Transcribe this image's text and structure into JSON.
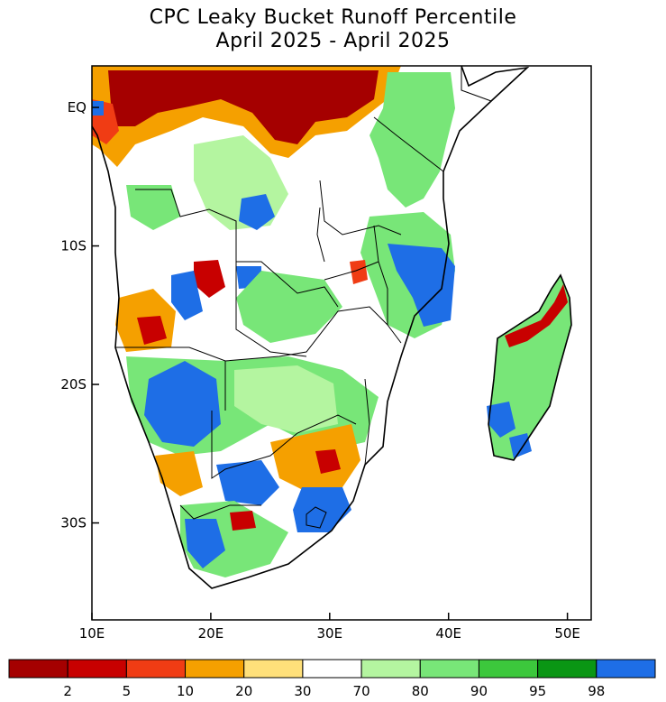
{
  "title_line1": "CPC Leaky Bucket Runoff Percentile",
  "title_line2": "April 2025 - April 2025",
  "map_extent": {
    "lon_min": 10,
    "lon_max": 52,
    "lat_min": -37,
    "lat_max": 3
  },
  "lon_ticks": [
    {
      "value": 10,
      "label": "10E"
    },
    {
      "value": 20,
      "label": "20E"
    },
    {
      "value": 30,
      "label": "30E"
    },
    {
      "value": 40,
      "label": "40E"
    },
    {
      "value": 50,
      "label": "50E"
    }
  ],
  "lat_ticks": [
    {
      "value": 0,
      "label": "EQ"
    },
    {
      "value": -10,
      "label": "10S"
    },
    {
      "value": -20,
      "label": "20S"
    },
    {
      "value": -30,
      "label": "30S"
    }
  ],
  "legend": {
    "bins": [
      {
        "color": "#a50000"
      },
      {
        "color": "#c80000"
      },
      {
        "color": "#f03c14"
      },
      {
        "color": "#f5a000"
      },
      {
        "color": "#ffe07a"
      },
      {
        "color": "#ffffff"
      },
      {
        "color": "#b4f5a0"
      },
      {
        "color": "#78e678"
      },
      {
        "color": "#3cc83c"
      },
      {
        "color": "#0a9614"
      },
      {
        "color": "#1e6ee6"
      }
    ],
    "boundary_labels": [
      "2",
      "5",
      "10",
      "20",
      "30",
      "70",
      "80",
      "90",
      "95",
      "98"
    ]
  }
}
